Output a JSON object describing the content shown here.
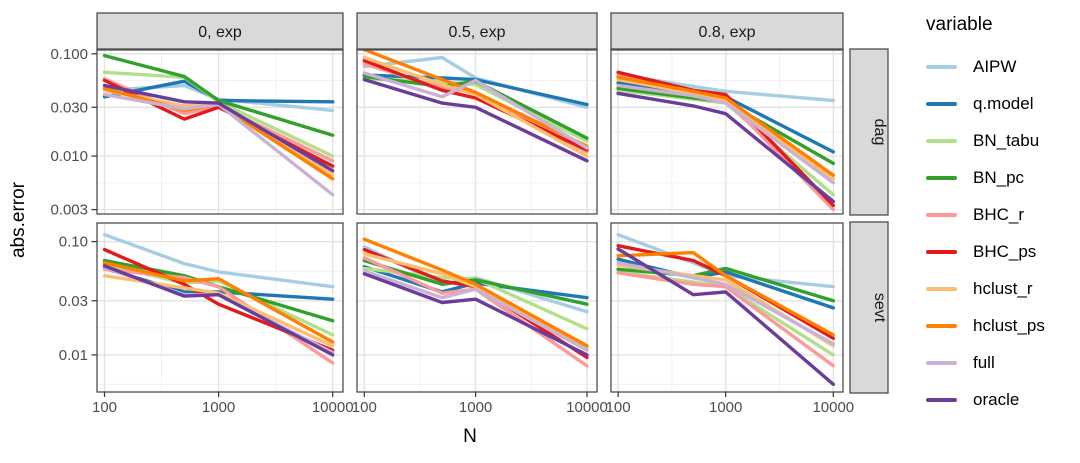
{
  "legend": {
    "title": "variable",
    "position": "right"
  },
  "chart_data": {
    "type": "line",
    "title": "",
    "xlabel": "N",
    "ylabel": "abs.error",
    "x_scale": "log10",
    "y_scale": "log10",
    "grid": true,
    "x": [
      100,
      500,
      1000,
      10000
    ],
    "x_ticks": [
      100,
      1000,
      10000
    ],
    "x_tick_labels": [
      "100",
      "1000",
      "10000"
    ],
    "x_minor": [
      316,
      3162
    ],
    "xlim": [
      86,
      12300
    ],
    "facet_col_labels": [
      "0, exp",
      "0.5, exp",
      "0.8, exp"
    ],
    "facet_row_labels": [
      "dag",
      "sevt"
    ],
    "rows": [
      {
        "label": "dag",
        "y_ticks": [
          0.1,
          0.03,
          0.01,
          0.003
        ],
        "y_tick_labels": [
          "0.100",
          "0.030",
          "0.010",
          "0.003"
        ],
        "y_minor": [
          0.0548,
          0.0173,
          0.00548
        ],
        "ylim": [
          0.00272,
          0.109
        ]
      },
      {
        "label": "sevt",
        "y_ticks": [
          0.1,
          0.03,
          0.01
        ],
        "y_tick_labels": [
          "0.10",
          "0.03",
          "0.01"
        ],
        "y_minor": [
          0.0548,
          0.0173,
          0.00548
        ],
        "ylim": [
          0.0047,
          0.146
        ]
      }
    ],
    "series": [
      {
        "name": "AIPW",
        "color": "#A6CEE3"
      },
      {
        "name": "q.model",
        "color": "#1F78B4"
      },
      {
        "name": "BN_tabu",
        "color": "#B2DF8A"
      },
      {
        "name": "BN_pc",
        "color": "#33A02C"
      },
      {
        "name": "BHC_r",
        "color": "#FB9A99"
      },
      {
        "name": "BHC_ps",
        "color": "#E31A1C"
      },
      {
        "name": "hclust_r",
        "color": "#FDBF6F"
      },
      {
        "name": "hclust_ps",
        "color": "#FF7F00"
      },
      {
        "name": "full",
        "color": "#CAB2D6"
      },
      {
        "name": "oracle",
        "color": "#6A3D9A"
      }
    ],
    "panels": [
      {
        "row": "dag",
        "col": "0, exp",
        "values": {
          "AIPW": [
            0.044,
            0.049,
            0.036,
            0.028
          ],
          "q.model": [
            0.038,
            0.054,
            0.035,
            0.034
          ],
          "BN_tabu": [
            0.066,
            0.059,
            0.034,
            0.01
          ],
          "BN_pc": [
            0.096,
            0.06,
            0.035,
            0.016
          ],
          "BHC_r": [
            0.057,
            0.026,
            0.031,
            0.009
          ],
          "BHC_ps": [
            0.055,
            0.023,
            0.03,
            0.008
          ],
          "hclust_r": [
            0.044,
            0.031,
            0.032,
            0.0066
          ],
          "hclust_ps": [
            0.046,
            0.028,
            0.032,
            0.006
          ],
          "full": [
            0.04,
            0.029,
            0.032,
            0.0042
          ],
          "oracle": [
            0.049,
            0.034,
            0.033,
            0.0072
          ]
        }
      },
      {
        "row": "dag",
        "col": "0.5, exp",
        "values": {
          "AIPW": [
            0.075,
            0.092,
            0.058,
            0.03
          ],
          "q.model": [
            0.062,
            0.058,
            0.056,
            0.032
          ],
          "BN_tabu": [
            0.057,
            0.053,
            0.05,
            0.014
          ],
          "BN_pc": [
            0.06,
            0.048,
            0.054,
            0.015
          ],
          "BHC_r": [
            0.08,
            0.046,
            0.042,
            0.011
          ],
          "BHC_ps": [
            0.086,
            0.044,
            0.037,
            0.0115
          ],
          "hclust_r": [
            0.092,
            0.05,
            0.04,
            0.01
          ],
          "hclust_ps": [
            0.11,
            0.056,
            0.042,
            0.0125
          ],
          "full": [
            0.065,
            0.038,
            0.055,
            0.012
          ],
          "oracle": [
            0.056,
            0.033,
            0.03,
            0.009
          ]
        }
      },
      {
        "row": "dag",
        "col": "0.8, exp",
        "values": {
          "AIPW": [
            0.063,
            0.048,
            0.043,
            0.035
          ],
          "q.model": [
            0.052,
            0.04,
            0.038,
            0.011
          ],
          "BN_tabu": [
            0.044,
            0.036,
            0.033,
            0.0042
          ],
          "BN_pc": [
            0.046,
            0.037,
            0.034,
            0.0085
          ],
          "BHC_r": [
            0.062,
            0.042,
            0.036,
            0.003
          ],
          "BHC_ps": [
            0.066,
            0.044,
            0.04,
            0.0033
          ],
          "hclust_r": [
            0.056,
            0.041,
            0.035,
            0.006
          ],
          "hclust_ps": [
            0.059,
            0.043,
            0.037,
            0.0065
          ],
          "full": [
            0.049,
            0.039,
            0.033,
            0.0055
          ],
          "oracle": [
            0.041,
            0.031,
            0.026,
            0.0036
          ]
        }
      },
      {
        "row": "sevt",
        "col": "0, exp",
        "values": {
          "AIPW": [
            0.115,
            0.064,
            0.054,
            0.04
          ],
          "q.model": [
            0.058,
            0.036,
            0.036,
            0.031
          ],
          "BN_tabu": [
            0.063,
            0.043,
            0.045,
            0.015
          ],
          "BN_pc": [
            0.068,
            0.05,
            0.04,
            0.02
          ],
          "BHC_r": [
            0.057,
            0.048,
            0.04,
            0.0085
          ],
          "BHC_ps": [
            0.085,
            0.042,
            0.028,
            0.011
          ],
          "hclust_r": [
            0.05,
            0.039,
            0.035,
            0.012
          ],
          "hclust_ps": [
            0.065,
            0.045,
            0.047,
            0.013
          ],
          "full": [
            0.059,
            0.034,
            0.034,
            0.0105
          ],
          "oracle": [
            0.061,
            0.033,
            0.034,
            0.01
          ]
        }
      },
      {
        "row": "sevt",
        "col": "0.5, exp",
        "values": {
          "AIPW": [
            0.09,
            0.042,
            0.048,
            0.024
          ],
          "q.model": [
            0.06,
            0.036,
            0.043,
            0.032
          ],
          "BN_tabu": [
            0.058,
            0.048,
            0.047,
            0.017
          ],
          "BN_pc": [
            0.068,
            0.042,
            0.046,
            0.028
          ],
          "BHC_r": [
            0.072,
            0.035,
            0.038,
            0.008
          ],
          "BHC_ps": [
            0.085,
            0.045,
            0.04,
            0.0095
          ],
          "hclust_r": [
            0.078,
            0.052,
            0.04,
            0.0115
          ],
          "hclust_ps": [
            0.105,
            0.056,
            0.042,
            0.012
          ],
          "full": [
            0.055,
            0.032,
            0.038,
            0.011
          ],
          "oracle": [
            0.052,
            0.029,
            0.031,
            0.01
          ]
        }
      },
      {
        "row": "sevt",
        "col": "0.8, exp",
        "values": {
          "AIPW": [
            0.115,
            0.065,
            0.05,
            0.04
          ],
          "q.model": [
            0.07,
            0.048,
            0.054,
            0.026
          ],
          "BN_tabu": [
            0.054,
            0.044,
            0.04,
            0.01
          ],
          "BN_pc": [
            0.057,
            0.05,
            0.058,
            0.03
          ],
          "BHC_r": [
            0.053,
            0.042,
            0.04,
            0.008
          ],
          "BHC_ps": [
            0.092,
            0.068,
            0.05,
            0.014
          ],
          "hclust_r": [
            0.062,
            0.05,
            0.046,
            0.012
          ],
          "hclust_ps": [
            0.075,
            0.08,
            0.05,
            0.015
          ],
          "full": [
            0.065,
            0.048,
            0.042,
            0.0125
          ],
          "oracle": [
            0.086,
            0.034,
            0.036,
            0.0055
          ]
        }
      }
    ]
  }
}
